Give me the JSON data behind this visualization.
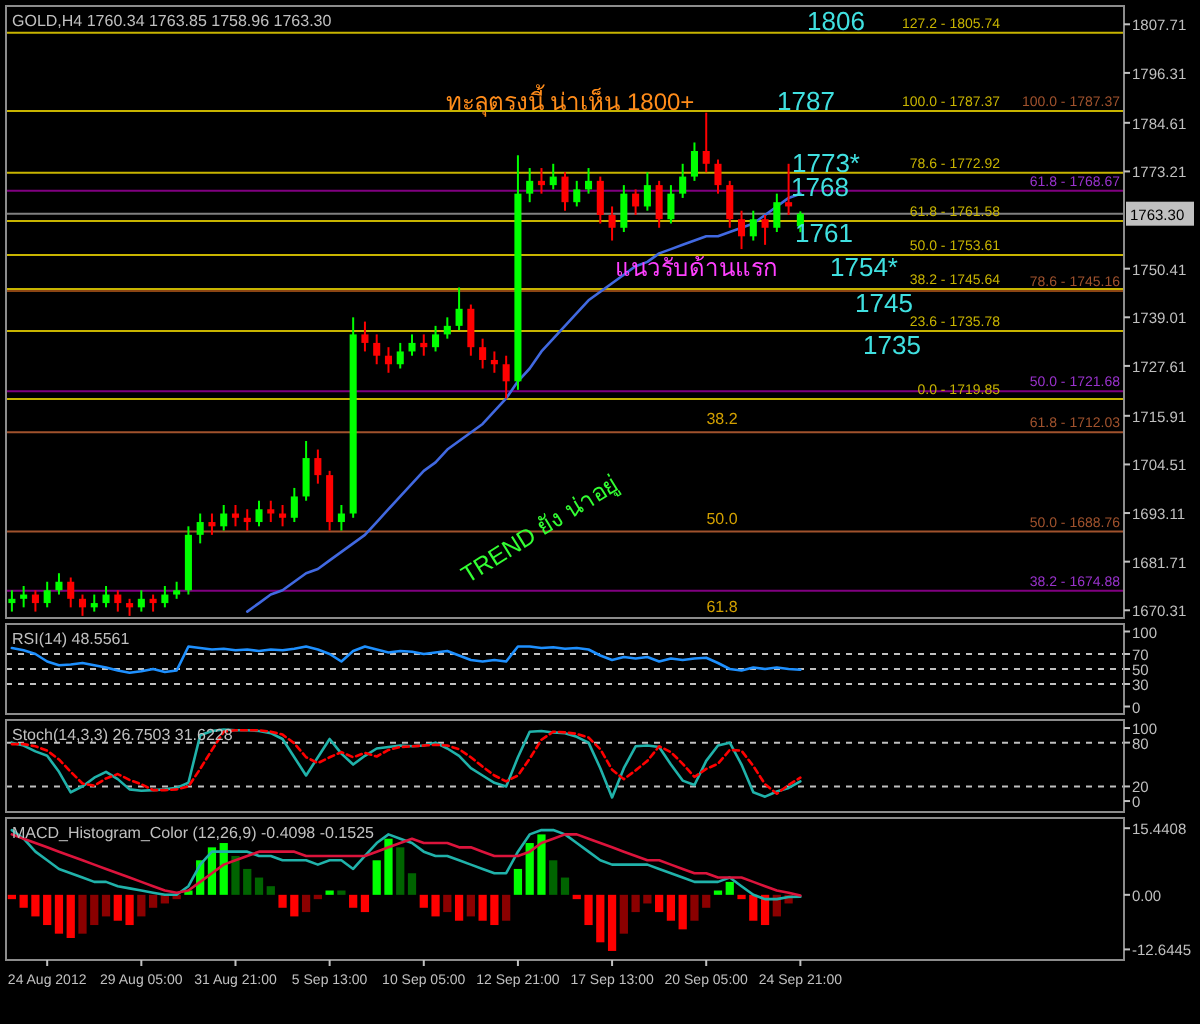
{
  "chart_data": [
    {
      "type": "candlestick",
      "title": "GOLD,H4  1760.34 1763.85 1758.96 1763.30",
      "tick_labels": "y",
      "categories": [
        null,
        null,
        null,
        null,
        null,
        null,
        null,
        null,
        null,
        null,
        null,
        null,
        null,
        null,
        null,
        null,
        null,
        null,
        null,
        null,
        null,
        null,
        null,
        null,
        null,
        null,
        null,
        null,
        null,
        null,
        null,
        null,
        null,
        null,
        null,
        null,
        null,
        null,
        null,
        null,
        null,
        null,
        null,
        null,
        null,
        null,
        null,
        null,
        null,
        null,
        null,
        null,
        null,
        null,
        null,
        null,
        null,
        null,
        null,
        null,
        null,
        null,
        null,
        null,
        null,
        null,
        null,
        null,
        null,
        null,
        null,
        null,
        null,
        null,
        null,
        null,
        null,
        null,
        null,
        null,
        null,
        null,
        null,
        null,
        null,
        null,
        null,
        null,
        null,
        null,
        null,
        null,
        null,
        null,
        null
      ],
      "ohlc": [
        [
          1672,
          1675,
          1670,
          1673
        ],
        [
          1673,
          1676,
          1671,
          1674
        ],
        [
          1674,
          1675,
          1670,
          1672
        ],
        [
          1672,
          1677,
          1671,
          1675
        ],
        [
          1675,
          1679,
          1674,
          1677
        ],
        [
          1677,
          1678,
          1671,
          1673
        ],
        [
          1673,
          1674,
          1669,
          1671
        ],
        [
          1671,
          1674,
          1670,
          1672
        ],
        [
          1672,
          1676,
          1671,
          1674
        ],
        [
          1674,
          1675,
          1670,
          1672
        ],
        [
          1672,
          1673,
          1669,
          1671
        ],
        [
          1671,
          1675,
          1670,
          1673
        ],
        [
          1673,
          1674,
          1670,
          1672
        ],
        [
          1672,
          1676,
          1671,
          1674
        ],
        [
          1674,
          1677,
          1673,
          1675
        ],
        [
          1675,
          1690,
          1674,
          1688
        ],
        [
          1688,
          1693,
          1686,
          1691
        ],
        [
          1691,
          1693,
          1688,
          1690
        ],
        [
          1690,
          1695,
          1689,
          1693
        ],
        [
          1693,
          1695,
          1690,
          1692
        ],
        [
          1692,
          1694,
          1689,
          1691
        ],
        [
          1691,
          1696,
          1690,
          1694
        ],
        [
          1694,
          1696,
          1691,
          1693
        ],
        [
          1693,
          1695,
          1690,
          1692
        ],
        [
          1692,
          1699,
          1691,
          1697
        ],
        [
          1697,
          1710,
          1696,
          1706
        ],
        [
          1706,
          1708,
          1700,
          1702
        ],
        [
          1702,
          1703,
          1689,
          1691
        ],
        [
          1691,
          1695,
          1689,
          1693
        ],
        [
          1693,
          1739,
          1692,
          1735
        ],
        [
          1735,
          1738,
          1731,
          1733
        ],
        [
          1733,
          1735,
          1728,
          1730
        ],
        [
          1730,
          1732,
          1726,
          1728
        ],
        [
          1728,
          1733,
          1727,
          1731
        ],
        [
          1731,
          1735,
          1730,
          1733
        ],
        [
          1733,
          1735,
          1730,
          1732
        ],
        [
          1732,
          1737,
          1731,
          1735
        ],
        [
          1735,
          1739,
          1734,
          1737
        ],
        [
          1737,
          1746,
          1736,
          1741
        ],
        [
          1741,
          1742,
          1730,
          1732
        ],
        [
          1732,
          1734,
          1727,
          1729
        ],
        [
          1729,
          1731,
          1726,
          1728
        ],
        [
          1728,
          1730,
          1720,
          1724
        ],
        [
          1724,
          1777,
          1722,
          1768
        ],
        [
          1768,
          1774,
          1766,
          1771
        ],
        [
          1771,
          1774,
          1768,
          1770
        ],
        [
          1770,
          1775,
          1769,
          1772
        ],
        [
          1772,
          1773,
          1764,
          1766
        ],
        [
          1766,
          1771,
          1765,
          1769
        ],
        [
          1769,
          1774,
          1768,
          1771
        ],
        [
          1771,
          1772,
          1761,
          1763
        ],
        [
          1763,
          1765,
          1757,
          1760
        ],
        [
          1760,
          1770,
          1759,
          1768
        ],
        [
          1768,
          1769,
          1763,
          1765
        ],
        [
          1765,
          1773,
          1764,
          1770
        ],
        [
          1770,
          1771,
          1760,
          1762
        ],
        [
          1762,
          1770,
          1761,
          1768
        ],
        [
          1768,
          1775,
          1767,
          1772
        ],
        [
          1772,
          1780,
          1771,
          1778
        ],
        [
          1778,
          1787,
          1773,
          1775
        ],
        [
          1775,
          1776,
          1768,
          1770
        ],
        [
          1770,
          1771,
          1760,
          1762
        ],
        [
          1762,
          1764,
          1755,
          1758
        ],
        [
          1758,
          1764,
          1757,
          1762
        ],
        [
          1762,
          1763,
          1756,
          1760
        ],
        [
          1760,
          1768,
          1759,
          1766
        ],
        [
          1766,
          1775,
          1763,
          1765
        ],
        [
          1760.34,
          1763.85,
          1758.96,
          1763.3
        ],
        null,
        null,
        null,
        null,
        null,
        null,
        null,
        null,
        null,
        null,
        null,
        null,
        null,
        null,
        null,
        null,
        null,
        null,
        null,
        null,
        null,
        null,
        null,
        null,
        null,
        null,
        null
      ],
      "colors": [
        "#00ff00",
        "#00ff00",
        "#ff0000",
        "#00ff00",
        "#00ff00",
        "#ff0000",
        "#ff0000",
        "#00ff00",
        "#00ff00",
        "#ff0000",
        "#ff0000",
        "#00ff00",
        "#ff0000",
        "#00ff00",
        "#00ff00",
        "#00ff00",
        "#00ff00",
        "#ff0000",
        "#00ff00",
        "#ff0000",
        "#ff0000",
        "#00ff00",
        "#ff0000",
        "#ff0000",
        "#00ff00",
        "#00ff00",
        "#ff0000",
        "#ff0000",
        "#00ff00",
        "#00ff00",
        "#ff0000",
        "#ff0000",
        "#ff0000",
        "#00ff00",
        "#00ff00",
        "#ff0000",
        "#00ff00",
        "#00ff00",
        "#00ff00",
        "#ff0000",
        "#ff0000",
        "#ff0000",
        "#ff0000",
        "#00ff00",
        "#00ff00",
        "#ff0000",
        "#00ff00",
        "#ff0000",
        "#00ff00",
        "#00ff00",
        "#ff0000",
        "#ff0000",
        "#00ff00",
        "#ff0000",
        "#00ff00",
        "#ff0000",
        "#00ff00",
        "#00ff00",
        "#00ff00",
        "#ff0000",
        "#ff0000",
        "#ff0000",
        "#ff0000",
        "#00ff00",
        "#ff0000",
        "#00ff00",
        "#ff0000",
        "#00ff00",
        null,
        null,
        null,
        null,
        null,
        null,
        null,
        null,
        null,
        null,
        null,
        null,
        null,
        null,
        null,
        null,
        null,
        null,
        null,
        null,
        null,
        null,
        null,
        null,
        null,
        null,
        null
      ],
      "series": [
        {
          "type": "line",
          "color": "#4169e1",
          "values": [
            null,
            null,
            null,
            null,
            null,
            null,
            null,
            null,
            null,
            null,
            null,
            null,
            null,
            null,
            null,
            null,
            null,
            null,
            null,
            null,
            1670,
            1672,
            1674,
            1675,
            1677,
            1679,
            1680,
            1682,
            1684,
            1686,
            1688,
            1691,
            1694,
            1697,
            1700,
            1703,
            1705,
            1708,
            1710,
            1712,
            1714,
            1717,
            1720,
            1724,
            1727,
            1731,
            1734,
            1737,
            1740,
            1743,
            1745,
            1747,
            1749,
            1751,
            1752,
            1754,
            1755,
            1756,
            1757,
            1758,
            1758,
            1759,
            1760,
            1761,
            1763,
            1765,
            1767,
            1768,
            null,
            null,
            null,
            null,
            null,
            null,
            null,
            null,
            null,
            null,
            null,
            null,
            null,
            null,
            null,
            null,
            null,
            null,
            null,
            null,
            null,
            null,
            null,
            null,
            null,
            null,
            null
          ]
        }
      ],
      "ylim": [
        1668.5,
        1812
      ],
      "yticks": [
        1807.71,
        1796.31,
        1784.61,
        1773.21,
        1750.41,
        1739.01,
        1727.61,
        1715.91,
        1704.51,
        1693.11,
        1681.71,
        1670.31
      ],
      "ref_lines": [
        {
          "axis": "y",
          "value": 1805.74,
          "color": "#c8b400"
        },
        {
          "axis": "y",
          "value": 1787.37,
          "color": "#c8b400"
        },
        {
          "axis": "y",
          "value": 1772.92,
          "color": "#c8b400"
        },
        {
          "axis": "y",
          "value": 1761.58,
          "color": "#c8b400"
        },
        {
          "axis": "y",
          "value": 1753.61,
          "color": "#c8b400"
        },
        {
          "axis": "y",
          "value": 1745.64,
          "color": "#c8b400"
        },
        {
          "axis": "y",
          "value": 1735.78,
          "color": "#c8b400"
        },
        {
          "axis": "y",
          "value": 1719.85,
          "color": "#c8b400"
        },
        {
          "axis": "y",
          "value": 1768.67,
          "color": "#800080"
        },
        {
          "axis": "y",
          "value": 1745.16,
          "color": "#8b4513"
        },
        {
          "axis": "y",
          "value": 1721.68,
          "color": "#800080"
        },
        {
          "axis": "y",
          "value": 1712.03,
          "color": "#a0522d"
        },
        {
          "axis": "y",
          "value": 1688.76,
          "color": "#a0522d"
        },
        {
          "axis": "y",
          "value": 1674.88,
          "color": "#800080"
        },
        {
          "axis": "y",
          "value": 1763.3,
          "label": "1763.30",
          "color": "#808080"
        }
      ],
      "annotations": [
        "1806",
        "ทะลุตรงนี้ น่าเห็น 1800+",
        "1787",
        "1773*",
        "1768",
        "1761",
        "แนวรับด้านแรก",
        "1754*",
        "1745",
        "1735",
        "TREND ยัง น่าอยู่",
        "38.2",
        "50.0",
        "61.8",
        {
          "text": "127.2 - 1805.74",
          "y": 1805.74
        },
        {
          "text": "100.0 - 1787.37",
          "y": 1787.37
        },
        {
          "text": "78.6 - 1772.92",
          "y": 1772.92
        },
        {
          "text": "61.8 - 1761.58",
          "y": 1761.58
        },
        {
          "text": "50.0 - 1753.61",
          "y": 1753.61
        },
        {
          "text": "38.2 - 1745.64",
          "y": 1745.64
        },
        {
          "text": "23.6 - 1735.78",
          "y": 1735.78
        },
        {
          "text": "0.0 - 1719.85",
          "y": 1719.85
        },
        {
          "text": "100.0 - 1787.37",
          "y": 1787.37
        },
        {
          "text": "61.8 - 1768.67",
          "y": 1768.67
        },
        {
          "text": "78.6 - 1745.16",
          "y": 1745.16
        },
        {
          "text": "50.0 - 1721.68",
          "y": 1721.68
        },
        {
          "text": "61.8 - 1712.03",
          "y": 1712.03
        },
        {
          "text": "50.0 - 1688.76",
          "y": 1688.76
        },
        {
          "text": "38.2 - 1674.88",
          "y": 1674.88
        }
      ]
    },
    {
      "type": "line",
      "title": "RSI(14) 48.5561",
      "tick_labels": "y",
      "categories": [
        null,
        null,
        null,
        null,
        null,
        null,
        null,
        null,
        null,
        null,
        null,
        null,
        null,
        null,
        null,
        null,
        null,
        null,
        null,
        null,
        null,
        null,
        null,
        null,
        null,
        null,
        null,
        null,
        null,
        null,
        null,
        null,
        null,
        null,
        null,
        null,
        null,
        null,
        null,
        null,
        null,
        null,
        null,
        null,
        null,
        null,
        null,
        null,
        null,
        null,
        null,
        null,
        null,
        null,
        null,
        null,
        null,
        null,
        null,
        null,
        null,
        null,
        null,
        null,
        null,
        null,
        null,
        null,
        null,
        null,
        null,
        null,
        null,
        null,
        null,
        null,
        null,
        null,
        null,
        null,
        null,
        null,
        null,
        null,
        null,
        null,
        null,
        null,
        null,
        null,
        null,
        null,
        null,
        null,
        null
      ],
      "series": [
        {
          "color": "#1e90ff",
          "values": [
            78,
            75,
            70,
            60,
            55,
            56,
            58,
            55,
            52,
            48,
            45,
            47,
            50,
            46,
            48,
            80,
            78,
            76,
            77,
            75,
            76,
            74,
            76,
            75,
            77,
            80,
            76,
            70,
            60,
            74,
            80,
            76,
            72,
            74,
            73,
            70,
            72,
            74,
            68,
            62,
            60,
            62,
            60,
            80,
            80,
            78,
            79,
            77,
            78,
            76,
            68,
            62,
            66,
            64,
            66,
            60,
            64,
            62,
            64,
            65,
            58,
            50,
            48,
            52,
            50,
            52,
            50,
            49,
            null,
            null,
            null,
            null,
            null,
            null,
            null,
            null,
            null,
            null,
            null,
            null,
            null,
            null,
            null,
            null,
            null,
            null,
            null,
            null,
            null,
            null,
            null,
            null,
            null,
            null,
            null
          ]
        }
      ],
      "ylim": [
        -10,
        110
      ],
      "yticks": [
        100,
        70,
        50,
        30,
        0
      ],
      "ref_lines": [
        {
          "axis": "y",
          "value": 70,
          "color": "#c0c0c0",
          "line_style": "dashed"
        },
        {
          "axis": "y",
          "value": 50,
          "color": "#c0c0c0",
          "line_style": "dashed"
        },
        {
          "axis": "y",
          "value": 30,
          "color": "#c0c0c0",
          "line_style": "dashed"
        }
      ]
    },
    {
      "type": "line",
      "title": "Stoch(14,3,3) 26.7503 31.6228",
      "tick_labels": "y",
      "categories": [
        null,
        null,
        null,
        null,
        null,
        null,
        null,
        null,
        null,
        null,
        null,
        null,
        null,
        null,
        null,
        null,
        null,
        null,
        null,
        null,
        null,
        null,
        null,
        null,
        null,
        null,
        null,
        null,
        null,
        null,
        null,
        null,
        null,
        null,
        null,
        null,
        null,
        null,
        null,
        null,
        null,
        null,
        null,
        null,
        null,
        null,
        null,
        null,
        null,
        null,
        null,
        null,
        null,
        null,
        null,
        null,
        null,
        null,
        null,
        null,
        null,
        null,
        null,
        null,
        null,
        null,
        null,
        null,
        null,
        null,
        null,
        null,
        null,
        null,
        null,
        null,
        null,
        null,
        null,
        null,
        null,
        null,
        null,
        null,
        null,
        null,
        null,
        null,
        null,
        null,
        null,
        null,
        null,
        null,
        null
      ],
      "series": [
        {
          "color": "#20b2aa",
          "values": [
            80,
            76,
            68,
            62,
            40,
            12,
            20,
            32,
            40,
            30,
            16,
            14,
            15,
            16,
            18,
            25,
            90,
            96,
            98,
            97,
            97,
            96,
            93,
            85,
            60,
            35,
            60,
            85,
            65,
            50,
            62,
            72,
            74,
            76,
            75,
            76,
            80,
            72,
            62,
            45,
            35,
            25,
            20,
            60,
            95,
            96,
            94,
            93,
            88,
            80,
            45,
            5,
            45,
            75,
            76,
            74,
            50,
            28,
            22,
            55,
            76,
            80,
            50,
            12,
            6,
            13,
            18,
            27,
            null,
            null,
            null,
            null,
            null,
            null,
            null,
            null,
            null,
            null,
            null,
            null,
            null,
            null,
            null,
            null,
            null,
            null,
            null,
            null,
            null,
            null,
            null,
            null,
            null,
            null,
            null
          ]
        },
        {
          "color": "#ff0000",
          "line_style": "dashed",
          "values": [
            78,
            78,
            75,
            69,
            57,
            40,
            24,
            21,
            31,
            37,
            29,
            23,
            15,
            15,
            16,
            20,
            44,
            70,
            95,
            97,
            97,
            97,
            95,
            91,
            79,
            60,
            52,
            60,
            67,
            60,
            66,
            61,
            70,
            74,
            75,
            76,
            77,
            76,
            71,
            60,
            47,
            35,
            27,
            35,
            58,
            84,
            95,
            94,
            92,
            87,
            71,
            43,
            30,
            42,
            55,
            75,
            67,
            51,
            33,
            44,
            51,
            70,
            69,
            48,
            23,
            10,
            22,
            32,
            null,
            null,
            null,
            null,
            null,
            null,
            null,
            null,
            null,
            null,
            null,
            null,
            null,
            null,
            null,
            null,
            null,
            null,
            null,
            null,
            null,
            null,
            null,
            null,
            null,
            null,
            null
          ]
        }
      ],
      "ylim": [
        -15,
        111
      ],
      "yticks": [
        100,
        80,
        20,
        0
      ],
      "ref_lines": [
        {
          "axis": "y",
          "value": 80,
          "color": "#c0c0c0",
          "line_style": "dashed"
        },
        {
          "axis": "y",
          "value": 20,
          "color": "#c0c0c0",
          "line_style": "dashed"
        }
      ]
    },
    {
      "type": "bar",
      "title": "MACD_Histogram_Color (12,26,9)  -0.4098 -0.1525",
      "categories": [
        null,
        null,
        null,
        "24 Aug 2012",
        null,
        null,
        null,
        null,
        null,
        null,
        null,
        "29 Aug 05:00",
        null,
        null,
        null,
        null,
        null,
        null,
        null,
        "31 Aug 21:00",
        null,
        null,
        null,
        null,
        null,
        null,
        null,
        "5 Sep 13:00",
        null,
        null,
        null,
        null,
        null,
        null,
        null,
        "10 Sep 05:00",
        null,
        null,
        null,
        null,
        null,
        null,
        null,
        "12 Sep 21:00",
        null,
        null,
        null,
        null,
        null,
        null,
        null,
        "17 Sep 13:00",
        null,
        null,
        null,
        null,
        null,
        null,
        null,
        "20 Sep 05:00",
        null,
        null,
        null,
        null,
        null,
        null,
        null,
        "24 Sep 21:00",
        null,
        null,
        null,
        null,
        null,
        null,
        null,
        null,
        null,
        null,
        null,
        null,
        null,
        null,
        null,
        null,
        null,
        null,
        null,
        null,
        null,
        null,
        null,
        null,
        null,
        null,
        null
      ],
      "series": [
        {
          "type": "bar",
          "values": [
            -1,
            -3,
            -5,
            -7,
            -9,
            -10,
            -9,
            -7,
            -5,
            -6,
            -7,
            -5,
            -3,
            -2,
            -1,
            1,
            8,
            11,
            12,
            9,
            6,
            4,
            2,
            -3,
            -5,
            -4,
            -1,
            1,
            1,
            -3,
            -4,
            8,
            13,
            11,
            5,
            -3,
            -5,
            -4,
            -6,
            -5,
            -6,
            -7,
            -6,
            6,
            12,
            14,
            8,
            4,
            -1,
            -7,
            -11,
            -13,
            -9,
            -4,
            -2,
            -4,
            -6,
            -8,
            -6,
            -3,
            1,
            3,
            -1,
            -6,
            -7,
            -5,
            -2,
            null,
            null,
            null,
            null,
            null,
            null,
            null,
            null,
            null,
            null,
            null,
            null,
            null,
            null,
            null,
            null,
            null,
            null,
            null,
            null,
            null,
            null,
            null,
            null,
            null,
            null,
            null,
            null
          ],
          "colors": [
            "#ff0000",
            "#ff0000",
            "#ff0000",
            "#ff0000",
            "#ff0000",
            "#ff0000",
            "#8b0000",
            "#8b0000",
            "#8b0000",
            "#ff0000",
            "#ff0000",
            "#8b0000",
            "#8b0000",
            "#8b0000",
            "#8b0000",
            "#00ff00",
            "#00ff00",
            "#00ff00",
            "#00ff00",
            "#006400",
            "#006400",
            "#006400",
            "#006400",
            "#ff0000",
            "#ff0000",
            "#8b0000",
            "#8b0000",
            "#00ff00",
            "#006400",
            "#ff0000",
            "#ff0000",
            "#00ff00",
            "#00ff00",
            "#006400",
            "#006400",
            "#ff0000",
            "#ff0000",
            "#8b0000",
            "#ff0000",
            "#8b0000",
            "#ff0000",
            "#ff0000",
            "#8b0000",
            "#00ff00",
            "#00ff00",
            "#00ff00",
            "#006400",
            "#006400",
            "#ff0000",
            "#ff0000",
            "#ff0000",
            "#ff0000",
            "#8b0000",
            "#8b0000",
            "#8b0000",
            "#ff0000",
            "#ff0000",
            "#ff0000",
            "#8b0000",
            "#8b0000",
            "#00ff00",
            "#00ff00",
            "#ff0000",
            "#ff0000",
            "#ff0000",
            "#8b0000",
            "#8b0000",
            null,
            null,
            null,
            null,
            null,
            null,
            null,
            null,
            null,
            null,
            null,
            null,
            null,
            null,
            null,
            null,
            null,
            null,
            null,
            null,
            null,
            null,
            null,
            null,
            null,
            null,
            null,
            null
          ]
        },
        {
          "type": "line",
          "color": "#20b2aa",
          "values": [
            15,
            13,
            10,
            8,
            6,
            5,
            4,
            3,
            3,
            2,
            1.5,
            1,
            0.5,
            0,
            0,
            2,
            7,
            10,
            10,
            10,
            10,
            9,
            9,
            8,
            8,
            8,
            7,
            8,
            8,
            6,
            9,
            12,
            14,
            13,
            12,
            10,
            9,
            9,
            8,
            7,
            6,
            5,
            5,
            10,
            14,
            15,
            15,
            14,
            12,
            10,
            8,
            7,
            7,
            7,
            7,
            6,
            5,
            4,
            3,
            3,
            3,
            4,
            2,
            0,
            -1,
            -1,
            -0.5,
            -0.41,
            null,
            null,
            null,
            null,
            null,
            null,
            null,
            null,
            null,
            null,
            null,
            null,
            null,
            null,
            null,
            null,
            null,
            null,
            null,
            null,
            null,
            null,
            null,
            null,
            null,
            null,
            null
          ]
        },
        {
          "type": "line",
          "color": "#dc143c",
          "values": [
            14,
            13,
            12,
            11,
            10,
            9,
            8,
            7,
            6,
            5,
            4,
            3,
            2,
            1,
            0.5,
            1,
            3,
            5,
            7,
            8,
            9,
            10,
            10,
            10,
            10,
            9,
            9,
            9,
            9,
            9,
            9,
            10,
            11,
            12,
            13,
            12,
            12,
            12,
            11,
            11,
            10,
            9,
            9,
            9,
            10,
            12,
            13,
            14,
            14,
            13,
            12,
            11,
            10,
            9,
            8,
            8,
            7,
            6,
            5,
            5,
            4,
            4,
            4,
            3,
            2,
            1,
            0.5,
            -0.15,
            null,
            null,
            null,
            null,
            null,
            null,
            null,
            null,
            null,
            null,
            null,
            null,
            null,
            null,
            null,
            null,
            null,
            null,
            null,
            null,
            null,
            null,
            null,
            null,
            null,
            null,
            null
          ]
        }
      ],
      "ylim": [
        -15.1,
        17.8
      ],
      "yticks": [
        15.4408,
        {
          "value": 0,
          "label": "0.00"
        },
        -12.6445
      ]
    }
  ]
}
